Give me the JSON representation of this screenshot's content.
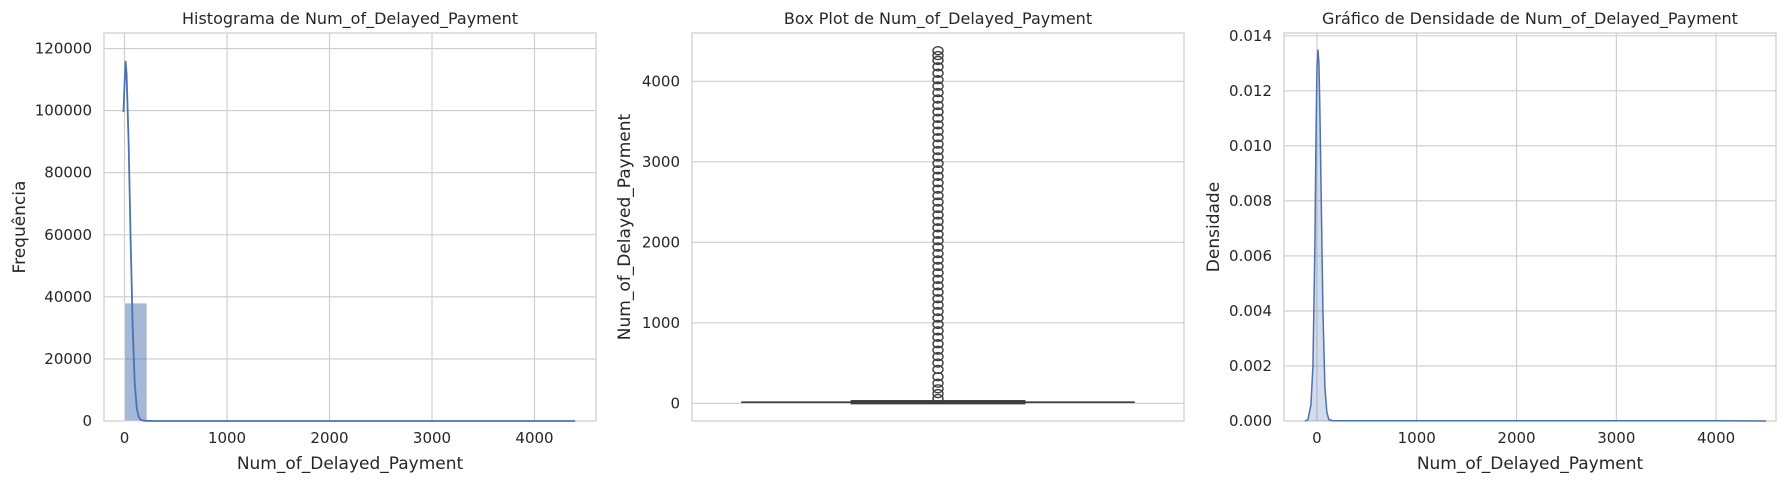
{
  "chart_data": [
    {
      "type": "histogram",
      "title": "Histograma de Num_of_Delayed_Payment",
      "xlabel": "Num_of_Delayed_Payment",
      "ylabel": "Frequência",
      "xlim": [
        -200,
        4600
      ],
      "ylim": [
        0,
        125000
      ],
      "xticks": [
        0,
        1000,
        2000,
        3000,
        4000
      ],
      "yticks": [
        0,
        20000,
        40000,
        60000,
        80000,
        100000,
        120000
      ],
      "bins": [
        {
          "start": 0,
          "end": 219,
          "count": 38000
        },
        {
          "start": 219,
          "end": 438,
          "count": 200
        },
        {
          "start": 438,
          "end": 657,
          "count": 180
        },
        {
          "start": 657,
          "end": 876,
          "count": 170
        },
        {
          "start": 876,
          "end": 1095,
          "count": 160
        },
        {
          "start": 1095,
          "end": 1314,
          "count": 160
        },
        {
          "start": 1314,
          "end": 1533,
          "count": 150
        },
        {
          "start": 1533,
          "end": 1752,
          "count": 150
        },
        {
          "start": 1752,
          "end": 1971,
          "count": 150
        },
        {
          "start": 1971,
          "end": 2190,
          "count": 150
        },
        {
          "start": 2190,
          "end": 2409,
          "count": 150
        },
        {
          "start": 2409,
          "end": 2628,
          "count": 150
        },
        {
          "start": 2628,
          "end": 2847,
          "count": 150
        },
        {
          "start": 2847,
          "end": 3066,
          "count": 150
        },
        {
          "start": 3066,
          "end": 3285,
          "count": 150
        },
        {
          "start": 3285,
          "end": 3504,
          "count": 150
        },
        {
          "start": 3504,
          "end": 3723,
          "count": 150
        },
        {
          "start": 3723,
          "end": 3942,
          "count": 150
        },
        {
          "start": 3942,
          "end": 4161,
          "count": 150
        },
        {
          "start": 4161,
          "end": 4397,
          "count": 150
        }
      ],
      "kde": {
        "x": [
          -10,
          0,
          10,
          20,
          40,
          60,
          80,
          100,
          120,
          140,
          160,
          200,
          300,
          500,
          1000,
          2000,
          3000,
          4000,
          4397
        ],
        "y": [
          99500,
          108000,
          116000,
          112000,
          90000,
          58000,
          30000,
          12000,
          4000,
          1200,
          300,
          60,
          0,
          0,
          0,
          0,
          0,
          0,
          0
        ]
      },
      "bar_color": "#4c72b0",
      "line_color": "#4c72b0"
    },
    {
      "type": "box",
      "title": "Box Plot de Num_of_Delayed_Payment",
      "ylabel": "Num_of_Delayed_Payment",
      "ylim": [
        -220,
        4600
      ],
      "yticks": [
        0,
        1000,
        2000,
        3000,
        4000
      ],
      "box": {
        "q1": 9,
        "median": 14,
        "q3": 18,
        "whisker_low": 0,
        "whisker_high": 28
      },
      "outliers": [
        60,
        120,
        180,
        250,
        330,
        420,
        500,
        580,
        660,
        740,
        820,
        900,
        980,
        1060,
        1140,
        1220,
        1300,
        1380,
        1460,
        1540,
        1620,
        1700,
        1780,
        1860,
        1940,
        2020,
        2100,
        2180,
        2260,
        2340,
        2420,
        2500,
        2580,
        2660,
        2740,
        2820,
        2900,
        2980,
        3060,
        3140,
        3220,
        3300,
        3380,
        3460,
        3540,
        3620,
        3700,
        3780,
        3860,
        3940,
        4020,
        4100,
        4180,
        4260,
        4320,
        4380
      ],
      "line_color": "#3d3d3d",
      "box_color": "#4c72b0"
    },
    {
      "type": "area",
      "title": "Gráfico de Densidade de Num_of_Delayed_Payment",
      "xlabel": "Num_of_Delayed_Payment",
      "ylabel": "Densidade",
      "xlim": [
        -330,
        4600
      ],
      "ylim": [
        0,
        0.0141
      ],
      "xticks": [
        0,
        1000,
        2000,
        3000,
        4000
      ],
      "yticks": [
        0,
        0.002,
        0.004,
        0.006,
        0.008,
        0.01,
        0.012,
        0.014
      ],
      "ytick_labels": [
        "0.000",
        "0.002",
        "0.004",
        "0.006",
        "0.008",
        "0.010",
        "0.012",
        "0.014"
      ],
      "x": [
        -120,
        -90,
        -60,
        -40,
        -20,
        -10,
        0,
        10,
        20,
        30,
        40,
        60,
        80,
        100,
        120,
        160,
        300,
        1000,
        2000,
        3000,
        4000,
        4500
      ],
      "y": [
        0,
        5e-05,
        0.0006,
        0.002,
        0.0065,
        0.0102,
        0.0128,
        0.0135,
        0.013,
        0.0112,
        0.0088,
        0.004,
        0.0012,
        0.0003,
        5e-05,
        1e-05,
        1e-05,
        1e-05,
        1e-05,
        1e-05,
        1e-05,
        0
      ],
      "fill_color": "#4c72b0",
      "line_color": "#4c72b0"
    }
  ]
}
